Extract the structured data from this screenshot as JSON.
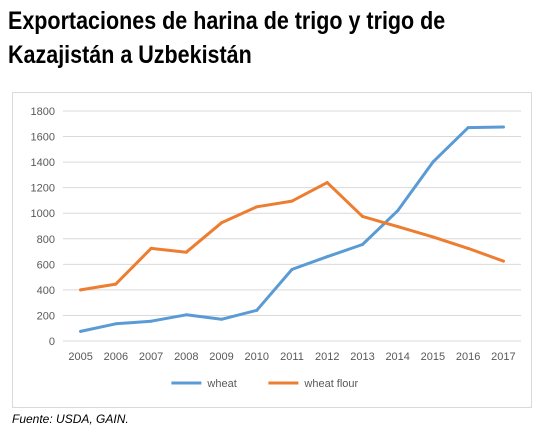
{
  "title_line1": "Exportaciones de harina de trigo y trigo de",
  "title_line2": "Kazajistán a Uzbekistán",
  "source": "Fuente: USDA, GAIN.",
  "chart_data": {
    "type": "line",
    "title": "Exportaciones de harina de trigo y trigo de Kazajistán a Uzbekistán",
    "xlabel": "",
    "ylabel": "",
    "x": [
      2005,
      2006,
      2007,
      2008,
      2009,
      2010,
      2011,
      2012,
      2013,
      2014,
      2015,
      2016,
      2017
    ],
    "ylim": [
      0,
      1800
    ],
    "yticks": [
      0,
      200,
      400,
      600,
      800,
      1000,
      1200,
      1400,
      1600,
      1800
    ],
    "grid": true,
    "legend": "bottom",
    "series": [
      {
        "name": "wheat",
        "color": "#5b9bd5",
        "values": [
          75,
          135,
          155,
          205,
          170,
          240,
          560,
          660,
          755,
          1020,
          1400,
          1670,
          1675
        ]
      },
      {
        "name": "wheat flour",
        "color": "#ed7d31",
        "values": [
          400,
          445,
          725,
          695,
          925,
          1050,
          1095,
          1240,
          975,
          895,
          815,
          725,
          625
        ]
      }
    ]
  }
}
